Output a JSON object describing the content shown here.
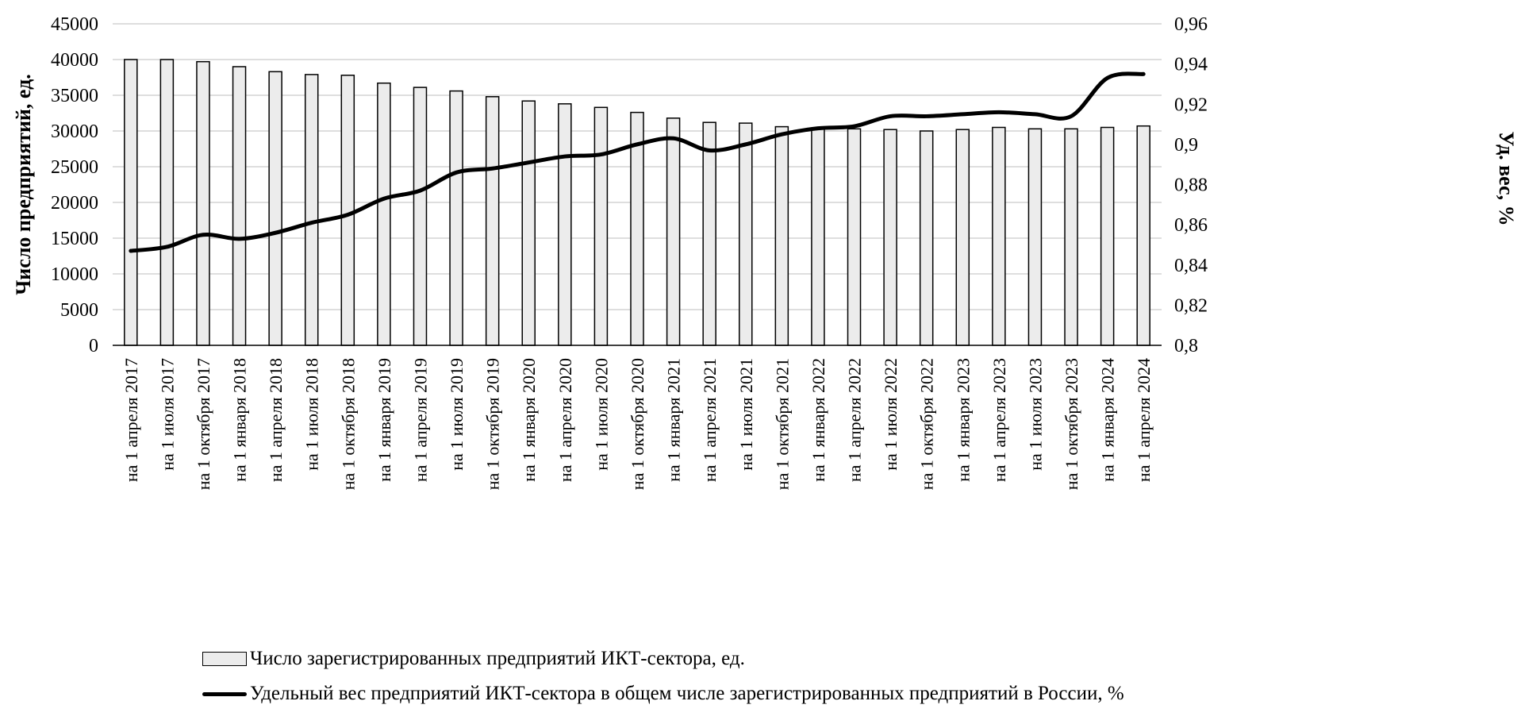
{
  "chart_data": {
    "type": "bar",
    "categories": [
      "на 1 апреля 2017",
      "на 1 июля 2017",
      "на 1 октября 2017",
      "на 1 января 2018",
      "на 1 апреля 2018",
      "на 1 июля 2018",
      "на 1 октября 2018",
      "на 1 января 2019",
      "на 1 апреля 2019",
      "на 1 июля 2019",
      "на 1 октября 2019",
      "на 1 января 2020",
      "на 1 апреля 2020",
      "на 1 июля 2020",
      "на 1 октября 2020",
      "на 1 января 2021",
      "на 1 апреля 2021",
      "на 1 июля 2021",
      "на 1 октября 2021",
      "на 1 января 2022",
      "на 1 апреля 2022",
      "на 1 июля 2022",
      "на 1 октября 2022",
      "на 1 января 2023",
      "на 1 апреля 2023",
      "на 1 июля 2023",
      "на 1 октября 2023",
      "на 1 января 2024",
      "на 1 апреля 2024"
    ],
    "series": [
      {
        "name": "Число зарегистрированных предприятий ИКТ-сектора, ед.",
        "type": "bar",
        "axis": "left",
        "values": [
          40000,
          40000,
          39700,
          39000,
          38300,
          37900,
          37800,
          36700,
          36100,
          35600,
          34800,
          34200,
          33800,
          33300,
          32600,
          31800,
          31200,
          31100,
          30600,
          30400,
          30300,
          30200,
          30000,
          30200,
          30500,
          30300,
          30300,
          30500,
          30700
        ]
      },
      {
        "name": "Удельный вес предприятий ИКТ-сектора в общем числе зарегистрированных предприятий в России, %",
        "type": "line",
        "axis": "right",
        "values": [
          0.847,
          0.849,
          0.855,
          0.853,
          0.856,
          0.861,
          0.865,
          0.873,
          0.877,
          0.886,
          0.888,
          0.891,
          0.894,
          0.895,
          0.9,
          0.903,
          0.897,
          0.9,
          0.905,
          0.908,
          0.909,
          0.914,
          0.914,
          0.915,
          0.916,
          0.915,
          0.914,
          0.933,
          0.935
        ]
      }
    ],
    "ylabel": "Число предприятий, ед.",
    "ylabel_right": "Уд. вес, %",
    "ylim": [
      0,
      45000
    ],
    "yticks": [
      "0",
      "5000",
      "10000",
      "15000",
      "20000",
      "25000",
      "30000",
      "35000",
      "40000",
      "45000"
    ],
    "ylim_right": [
      0.8,
      0.96
    ],
    "yticks_right": [
      "0,8",
      "0,82",
      "0,84",
      "0,86",
      "0,88",
      "0,9",
      "0,92",
      "0,94",
      "0,96"
    ],
    "grid": true,
    "legend_position": "bottom",
    "colors": {
      "bar_fill": "#ececec",
      "bar_stroke": "#000000",
      "line": "#000000",
      "grid": "#d4d4d4"
    }
  }
}
